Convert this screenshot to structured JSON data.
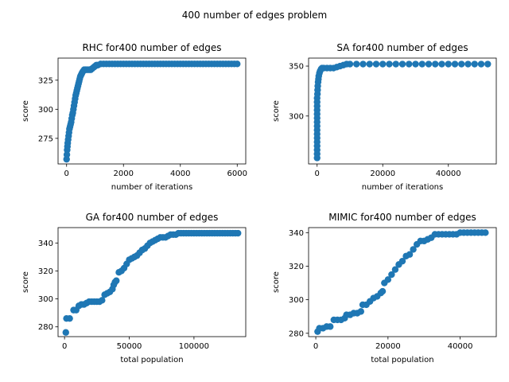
{
  "suptitle": "400 number of edges  problem",
  "marker_color": "#1f77b4",
  "chart_data": [
    {
      "type": "scatter",
      "title": "RHC for400 number of edges",
      "xlabel": "number of iterations",
      "ylabel": "score",
      "xlim": [
        -300,
        6300
      ],
      "ylim": [
        253,
        344
      ],
      "xticks": [
        0,
        2000,
        4000,
        6000
      ],
      "xtick_labels": [
        "0",
        "2000",
        "4000",
        "6000"
      ],
      "yticks": [
        275,
        300,
        325
      ],
      "ytick_labels": [
        "275",
        "300",
        "325"
      ],
      "grid": false,
      "points": [
        [
          0,
          257
        ],
        [
          10,
          261
        ],
        [
          20,
          265
        ],
        [
          30,
          268
        ],
        [
          40,
          271
        ],
        [
          55,
          274
        ],
        [
          70,
          277
        ],
        [
          85,
          280
        ],
        [
          100,
          283
        ],
        [
          120,
          285
        ],
        [
          140,
          287
        ],
        [
          160,
          289
        ],
        [
          180,
          292
        ],
        [
          200,
          295
        ],
        [
          220,
          297
        ],
        [
          240,
          300
        ],
        [
          260,
          303
        ],
        [
          280,
          306
        ],
        [
          300,
          309
        ],
        [
          320,
          312
        ],
        [
          340,
          314
        ],
        [
          360,
          316
        ],
        [
          380,
          318
        ],
        [
          400,
          320
        ],
        [
          420,
          322
        ],
        [
          440,
          324
        ],
        [
          460,
          326
        ],
        [
          480,
          328
        ],
        [
          500,
          329
        ],
        [
          520,
          330
        ],
        [
          540,
          331
        ],
        [
          560,
          332
        ],
        [
          590,
          333
        ],
        [
          620,
          334
        ],
        [
          660,
          334
        ],
        [
          700,
          334
        ],
        [
          750,
          334
        ],
        [
          800,
          334
        ],
        [
          850,
          334
        ],
        [
          900,
          335
        ],
        [
          950,
          336
        ],
        [
          1000,
          337
        ],
        [
          1050,
          338
        ],
        [
          1100,
          338
        ],
        [
          1200,
          339
        ],
        [
          1300,
          339
        ],
        [
          1400,
          339
        ],
        [
          1500,
          339
        ],
        [
          1600,
          339
        ],
        [
          1700,
          339
        ],
        [
          1800,
          339
        ],
        [
          1900,
          339
        ],
        [
          2000,
          339
        ],
        [
          2100,
          339
        ],
        [
          2200,
          339
        ],
        [
          2300,
          339
        ],
        [
          2400,
          339
        ],
        [
          2500,
          339
        ],
        [
          2600,
          339
        ],
        [
          2700,
          339
        ],
        [
          2800,
          339
        ],
        [
          2900,
          339
        ],
        [
          3000,
          339
        ],
        [
          3100,
          339
        ],
        [
          3200,
          339
        ],
        [
          3300,
          339
        ],
        [
          3400,
          339
        ],
        [
          3500,
          339
        ],
        [
          3600,
          339
        ],
        [
          3700,
          339
        ],
        [
          3800,
          339
        ],
        [
          3900,
          339
        ],
        [
          4000,
          339
        ],
        [
          4100,
          339
        ],
        [
          4200,
          339
        ],
        [
          4300,
          339
        ],
        [
          4400,
          339
        ],
        [
          4500,
          339
        ],
        [
          4600,
          339
        ],
        [
          4700,
          339
        ],
        [
          4800,
          339
        ],
        [
          4900,
          339
        ],
        [
          5000,
          339
        ],
        [
          5100,
          339
        ],
        [
          5200,
          339
        ],
        [
          5300,
          339
        ],
        [
          5400,
          339
        ],
        [
          5500,
          339
        ],
        [
          5600,
          339
        ],
        [
          5700,
          339
        ],
        [
          5800,
          339
        ],
        [
          5900,
          339
        ],
        [
          6000,
          339
        ]
      ]
    },
    {
      "type": "scatter",
      "title": "SA for400 number of edges",
      "xlabel": "number of iterations",
      "ylabel": "score",
      "xlim": [
        -2600,
        54600
      ],
      "ylim": [
        252,
        358
      ],
      "xticks": [
        0,
        20000,
        40000
      ],
      "xtick_labels": [
        "0",
        "20000",
        "40000"
      ],
      "yticks": [
        300,
        350
      ],
      "ytick_labels": [
        "300",
        "350"
      ],
      "grid": false,
      "points": [
        [
          0,
          258
        ],
        [
          0,
          262
        ],
        [
          0,
          266
        ],
        [
          0,
          270
        ],
        [
          0,
          274
        ],
        [
          0,
          278
        ],
        [
          0,
          282
        ],
        [
          0,
          286
        ],
        [
          0,
          290
        ],
        [
          0,
          294
        ],
        [
          0,
          298
        ],
        [
          0,
          302
        ],
        [
          0,
          306
        ],
        [
          0,
          310
        ],
        [
          0,
          314
        ],
        [
          0,
          318
        ],
        [
          100,
          322
        ],
        [
          150,
          326
        ],
        [
          200,
          330
        ],
        [
          300,
          334
        ],
        [
          400,
          337
        ],
        [
          500,
          340
        ],
        [
          700,
          343
        ],
        [
          900,
          345
        ],
        [
          1200,
          347
        ],
        [
          1500,
          348
        ],
        [
          2000,
          348
        ],
        [
          3000,
          348
        ],
        [
          4000,
          348
        ],
        [
          5000,
          348
        ],
        [
          6000,
          349
        ],
        [
          7000,
          350
        ],
        [
          8000,
          351
        ],
        [
          9000,
          352
        ],
        [
          10000,
          352
        ],
        [
          12000,
          352
        ],
        [
          14000,
          352
        ],
        [
          16000,
          352
        ],
        [
          18000,
          352
        ],
        [
          20000,
          352
        ],
        [
          22000,
          352
        ],
        [
          24000,
          352
        ],
        [
          26000,
          352
        ],
        [
          28000,
          352
        ],
        [
          30000,
          352
        ],
        [
          32000,
          352
        ],
        [
          34000,
          352
        ],
        [
          36000,
          352
        ],
        [
          38000,
          352
        ],
        [
          40000,
          352
        ],
        [
          42000,
          352
        ],
        [
          44000,
          352
        ],
        [
          46000,
          352
        ],
        [
          48000,
          352
        ],
        [
          50000,
          352
        ],
        [
          52000,
          352
        ]
      ]
    },
    {
      "type": "scatter",
      "title": "GA for400 number of edges",
      "xlabel": "total population",
      "ylabel": "score",
      "xlim": [
        -5000,
        140000
      ],
      "ylim": [
        273,
        351
      ],
      "xticks": [
        0,
        50000,
        100000
      ],
      "xtick_labels": [
        "0",
        "50000",
        "100000"
      ],
      "yticks": [
        280,
        300,
        320,
        340
      ],
      "ytick_labels": [
        "280",
        "300",
        "320",
        "340"
      ],
      "grid": false,
      "points": [
        [
          1000,
          276
        ],
        [
          1500,
          286
        ],
        [
          4000,
          286
        ],
        [
          7000,
          292
        ],
        [
          9000,
          292
        ],
        [
          11000,
          295
        ],
        [
          13000,
          296
        ],
        [
          15000,
          296
        ],
        [
          17000,
          297
        ],
        [
          19000,
          298
        ],
        [
          21000,
          298
        ],
        [
          23000,
          298
        ],
        [
          25000,
          298
        ],
        [
          27000,
          298
        ],
        [
          29000,
          299
        ],
        [
          31000,
          303
        ],
        [
          33000,
          304
        ],
        [
          35000,
          305
        ],
        [
          37000,
          307
        ],
        [
          38000,
          310
        ],
        [
          39000,
          312
        ],
        [
          40000,
          313
        ],
        [
          42000,
          319
        ],
        [
          44000,
          320
        ],
        [
          46000,
          322
        ],
        [
          48000,
          325
        ],
        [
          50000,
          328
        ],
        [
          52000,
          329
        ],
        [
          54000,
          330
        ],
        [
          56000,
          331
        ],
        [
          58000,
          333
        ],
        [
          60000,
          335
        ],
        [
          62000,
          336
        ],
        [
          64000,
          338
        ],
        [
          66000,
          340
        ],
        [
          68000,
          341
        ],
        [
          70000,
          342
        ],
        [
          72000,
          343
        ],
        [
          74000,
          344
        ],
        [
          76000,
          344
        ],
        [
          78000,
          344
        ],
        [
          80000,
          345
        ],
        [
          82000,
          346
        ],
        [
          84000,
          346
        ],
        [
          86000,
          346
        ],
        [
          88000,
          347
        ],
        [
          90000,
          347
        ],
        [
          92000,
          347
        ],
        [
          94000,
          347
        ],
        [
          96000,
          347
        ],
        [
          98000,
          347
        ],
        [
          100000,
          347
        ],
        [
          102000,
          347
        ],
        [
          104000,
          347
        ],
        [
          106000,
          347
        ],
        [
          108000,
          347
        ],
        [
          110000,
          347
        ],
        [
          112000,
          347
        ],
        [
          114000,
          347
        ],
        [
          116000,
          347
        ],
        [
          118000,
          347
        ],
        [
          120000,
          347
        ],
        [
          122000,
          347
        ],
        [
          124000,
          347
        ],
        [
          126000,
          347
        ],
        [
          128000,
          347
        ],
        [
          130000,
          347
        ],
        [
          132000,
          347
        ],
        [
          134000,
          347
        ]
      ]
    },
    {
      "type": "scatter",
      "title": "MIMIC for400 number of edges",
      "xlabel": "total population",
      "ylabel": "score",
      "xlim": [
        -2000,
        50000
      ],
      "ylim": [
        278,
        343
      ],
      "xticks": [
        0,
        20000,
        40000
      ],
      "xtick_labels": [
        "0",
        "20000",
        "40000"
      ],
      "yticks": [
        280,
        300,
        320,
        340
      ],
      "ytick_labels": [
        "280",
        "300",
        "320",
        "340"
      ],
      "grid": false,
      "points": [
        [
          500,
          281
        ],
        [
          1000,
          283
        ],
        [
          2000,
          283
        ],
        [
          3000,
          284
        ],
        [
          4000,
          284
        ],
        [
          5000,
          288
        ],
        [
          6000,
          288
        ],
        [
          7000,
          288
        ],
        [
          8000,
          289
        ],
        [
          8500,
          291
        ],
        [
          9500,
          291
        ],
        [
          10500,
          292
        ],
        [
          11500,
          292
        ],
        [
          12500,
          293
        ],
        [
          13000,
          297
        ],
        [
          14000,
          297
        ],
        [
          15000,
          299
        ],
        [
          16000,
          301
        ],
        [
          17000,
          302
        ],
        [
          18000,
          304
        ],
        [
          18500,
          305
        ],
        [
          19000,
          310
        ],
        [
          20000,
          312
        ],
        [
          21000,
          315
        ],
        [
          22000,
          318
        ],
        [
          23000,
          321
        ],
        [
          24000,
          323
        ],
        [
          25000,
          326
        ],
        [
          26000,
          327
        ],
        [
          27000,
          330
        ],
        [
          28000,
          333
        ],
        [
          29000,
          335
        ],
        [
          30000,
          335
        ],
        [
          31000,
          336
        ],
        [
          32000,
          337
        ],
        [
          33000,
          339
        ],
        [
          34000,
          339
        ],
        [
          35000,
          339
        ],
        [
          36000,
          339
        ],
        [
          37000,
          339
        ],
        [
          38000,
          339
        ],
        [
          39000,
          339
        ],
        [
          40000,
          340
        ],
        [
          41000,
          340
        ],
        [
          42000,
          340
        ],
        [
          43000,
          340
        ],
        [
          44000,
          340
        ],
        [
          45000,
          340
        ],
        [
          46000,
          340
        ],
        [
          47000,
          340
        ]
      ]
    }
  ]
}
